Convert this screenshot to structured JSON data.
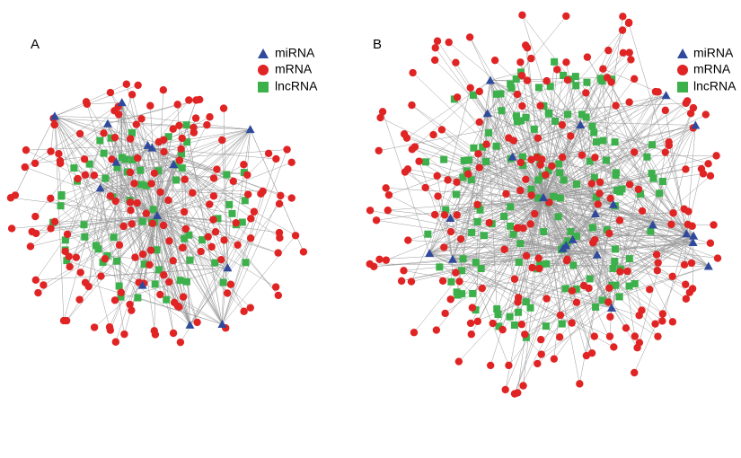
{
  "panels": [
    {
      "label": "A",
      "legend": [
        "miRNA",
        "mRNA",
        "lncRNA"
      ]
    },
    {
      "label": "B",
      "legend": [
        "miRNA",
        "mRNA",
        "lncRNA"
      ]
    }
  ]
}
